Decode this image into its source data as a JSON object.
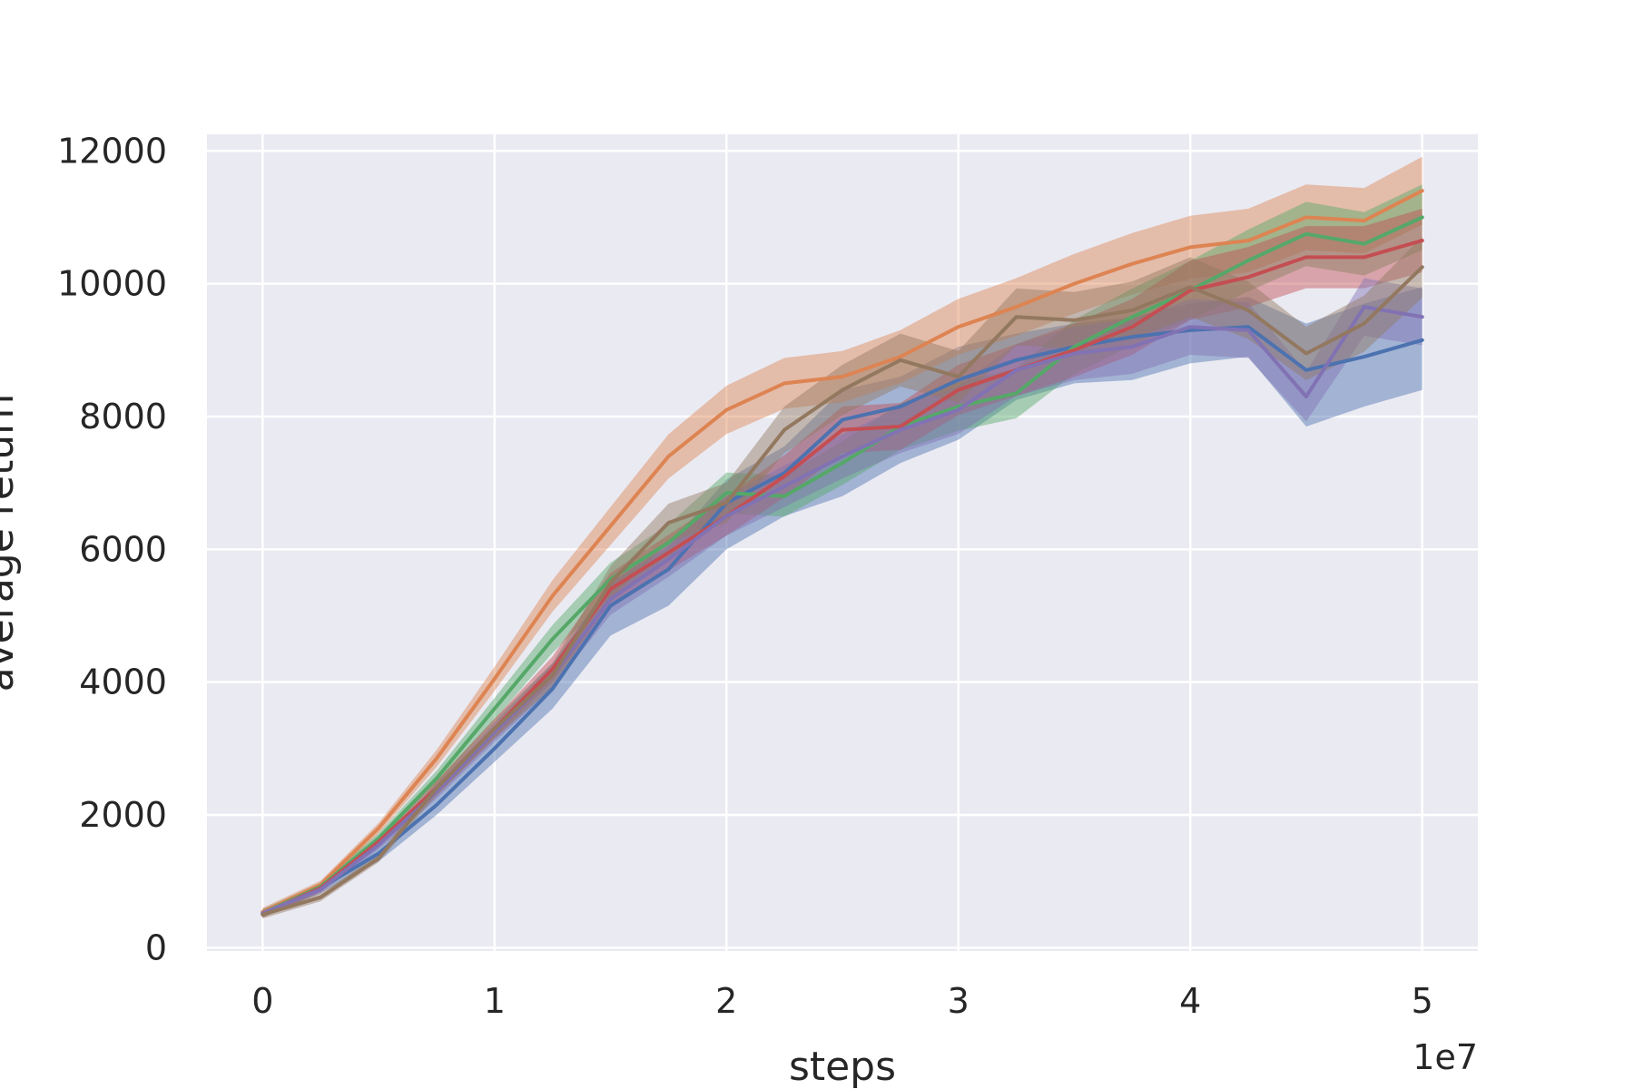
{
  "chart_data": {
    "type": "line",
    "xlabel": "steps",
    "ylabel": "average return",
    "x_offset_label": "1e7",
    "xlim": [
      -0.24,
      5.24
    ],
    "ylim": [
      -50,
      12250
    ],
    "xticks": [
      0,
      1,
      2,
      3,
      4,
      5
    ],
    "xtick_labels": [
      "0",
      "1",
      "2",
      "3",
      "4",
      "5"
    ],
    "yticks": [
      0,
      2000,
      4000,
      6000,
      8000,
      10000,
      12000
    ],
    "ytick_labels": [
      "0",
      "2000",
      "4000",
      "6000",
      "8000",
      "10000",
      "12000"
    ],
    "grid": true,
    "background": "#eaeaf2",
    "x": [
      0,
      0.25,
      0.5,
      0.75,
      1.0,
      1.25,
      1.5,
      1.75,
      2.0,
      2.25,
      2.5,
      2.75,
      3.0,
      3.25,
      3.5,
      3.75,
      4.0,
      4.25,
      4.5,
      4.75,
      5.0
    ],
    "series": [
      {
        "color": "#4c72b0",
        "values": [
          520,
          900,
          1420,
          2150,
          3000,
          3900,
          5150,
          5700,
          6700,
          7150,
          7950,
          8150,
          8550,
          8850,
          9050,
          9200,
          9300,
          9350,
          8700,
          8900,
          9150
        ],
        "lower": [
          470,
          820,
          1300,
          2000,
          2800,
          3600,
          4700,
          5150,
          6000,
          6500,
          6800,
          7300,
          7650,
          8250,
          8500,
          8550,
          8800,
          8900,
          7850,
          8150,
          8400
        ],
        "upper": [
          570,
          980,
          1540,
          2300,
          3250,
          4250,
          5500,
          6050,
          7050,
          7550,
          8400,
          8600,
          9050,
          9250,
          9400,
          9500,
          9700,
          9800,
          9400,
          9700,
          9950
        ]
      },
      {
        "color": "#dd8452",
        "values": [
          540,
          950,
          1800,
          2850,
          4050,
          5300,
          6350,
          7400,
          8100,
          8500,
          8600,
          8900,
          9350,
          9650,
          10000,
          10300,
          10550,
          10650,
          11000,
          10950,
          11400
        ]
      },
      {
        "color": "#55a868",
        "values": [
          520,
          920,
          1650,
          2550,
          3600,
          4650,
          5550,
          6100,
          6850,
          6800,
          7300,
          7850,
          8150,
          8350,
          9050,
          9500,
          9900,
          10350,
          10750,
          10600,
          11000
        ]
      },
      {
        "color": "#c44e52",
        "values": [
          510,
          900,
          1600,
          2400,
          3300,
          4200,
          5400,
          5950,
          6500,
          7100,
          7800,
          7850,
          8400,
          8700,
          9000,
          9350,
          9900,
          10100,
          10400,
          10400,
          10650
        ]
      },
      {
        "color": "#8172b3",
        "values": [
          520,
          880,
          1550,
          2350,
          3250,
          4100,
          5250,
          5850,
          6500,
          6950,
          7400,
          7800,
          8100,
          8700,
          8950,
          9050,
          9350,
          9300,
          8300,
          9650,
          9500
        ]
      },
      {
        "color": "#937860",
        "values": [
          500,
          760,
          1350,
          2400,
          3300,
          4100,
          5500,
          6400,
          6700,
          7800,
          8400,
          8850,
          8600,
          9500,
          9450,
          9600,
          9950,
          9600,
          8950,
          9400,
          10250
        ]
      }
    ]
  }
}
